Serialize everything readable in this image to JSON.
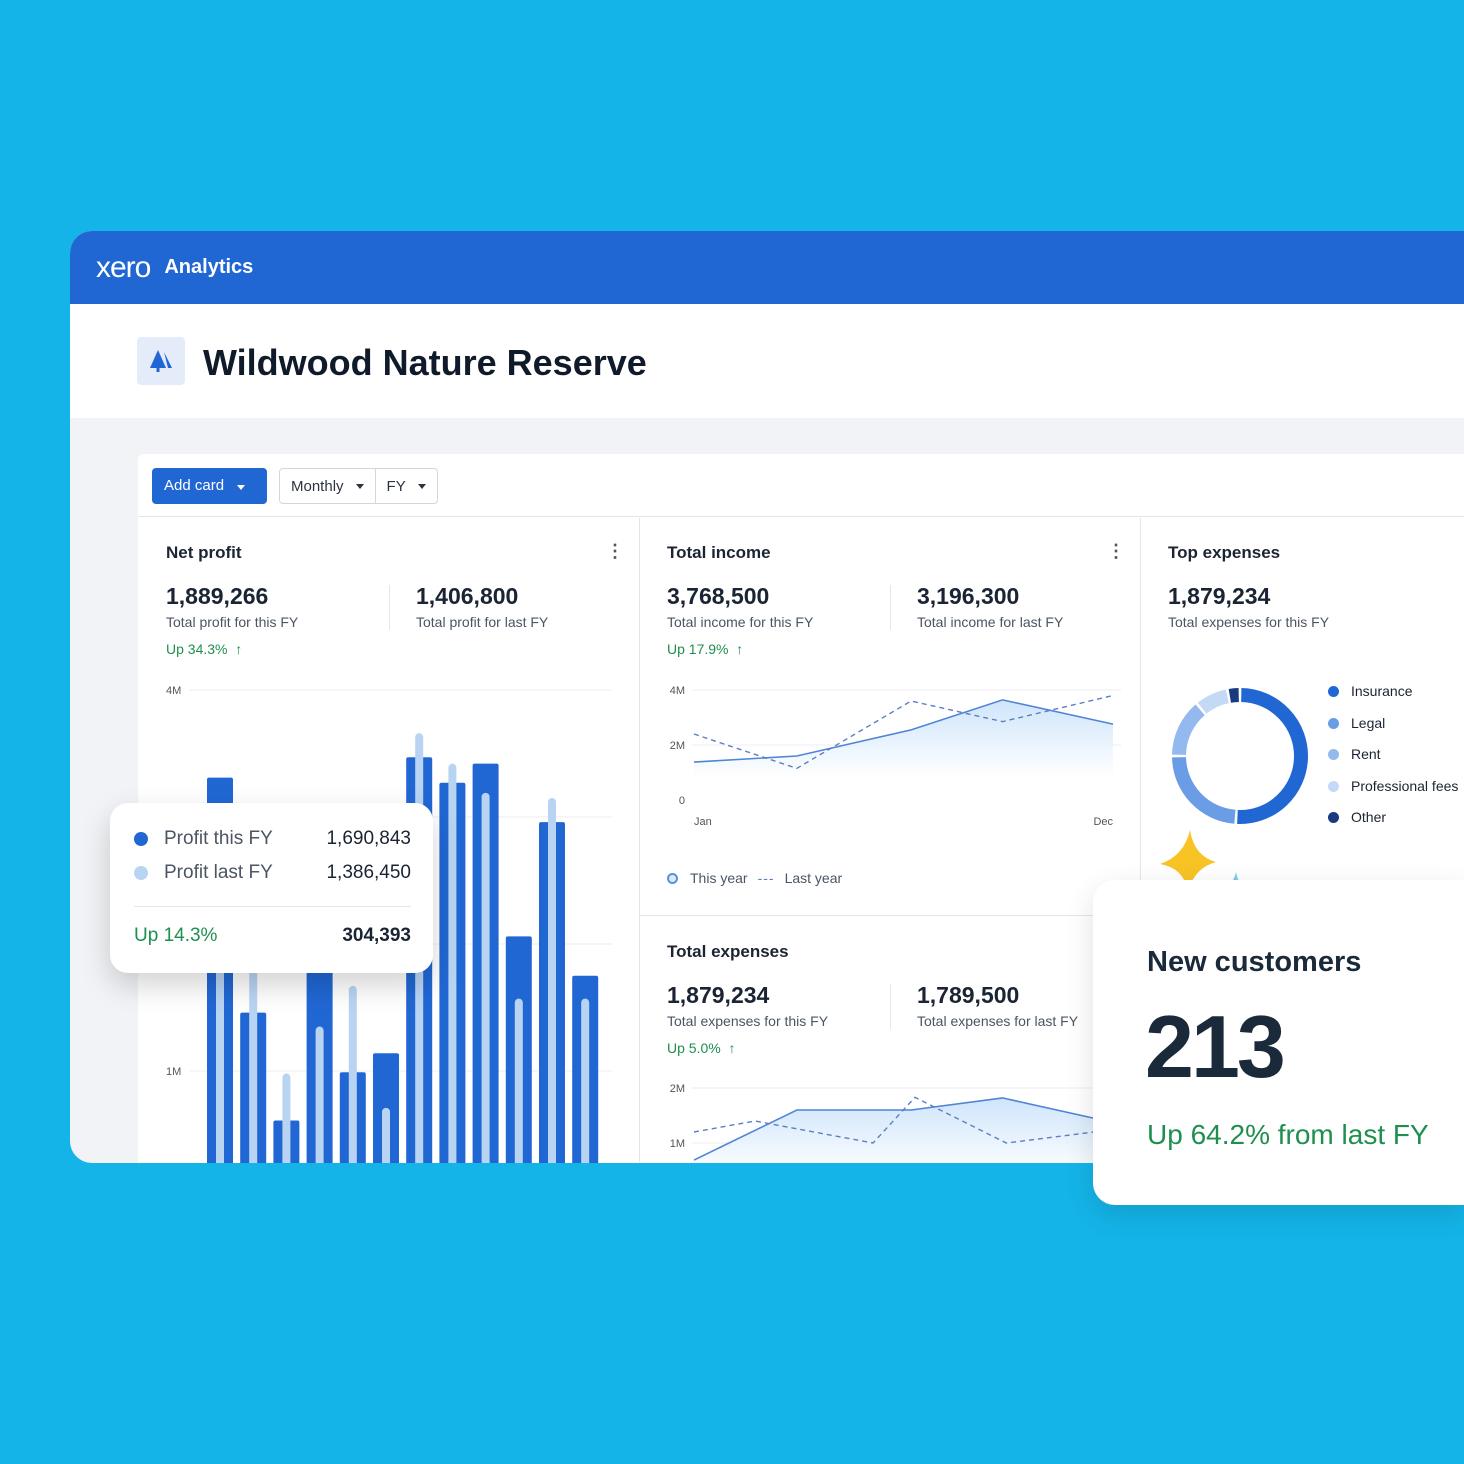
{
  "header": {
    "logo": "xero",
    "app": "Analytics"
  },
  "org": {
    "name": "Wildwood Nature Reserve",
    "icon": "tree-icon"
  },
  "toolbar": {
    "add_card": "Add card",
    "period": "Monthly",
    "range": "FY"
  },
  "net_profit": {
    "title": "Net profit",
    "this_value": "1,889,266",
    "this_label": "Total profit for this FY",
    "last_value": "1,406,800",
    "last_label": "Total profit for last FY",
    "change": "Up 34.3%"
  },
  "tooltip": {
    "row1_label": "Profit this FY",
    "row1_value": "1,690,843",
    "row2_label": "Profit last FY",
    "row2_value": "1,386,450",
    "change": "Up 14.3%",
    "diff": "304,393"
  },
  "total_income": {
    "title": "Total income",
    "this_value": "3,768,500",
    "this_label": "Total income for this FY",
    "last_value": "3,196,300",
    "last_label": "Total income for last FY",
    "change": "Up 17.9%",
    "legend_this": "This year",
    "legend_last": "Last year"
  },
  "total_expenses": {
    "title": "Total expenses",
    "this_value": "1,879,234",
    "this_label": "Total expenses for this FY",
    "last_value": "1,789,500",
    "last_label": "Total expenses for last FY",
    "change": "Up 5.0%"
  },
  "top_expenses": {
    "title": "Top expenses",
    "value": "1,879,234",
    "label": "Total expenses for this FY"
  },
  "new_customers": {
    "title": "New customers",
    "value": "213",
    "change": "Up 64.2% from last FY"
  },
  "colors": {
    "background": "#14b4e8",
    "brand": "#2167d4",
    "positive": "#1e8f4e",
    "this_fy": "#2167d4",
    "last_fy": "#b9d4f3",
    "sparkle_yellow": "#f7c325",
    "sparkle_blue": "#7fcbe8"
  },
  "chart_data": [
    {
      "type": "bar",
      "name": "net-profit",
      "yticks": [
        "4M",
        "1M"
      ],
      "ylim": [
        0,
        4000000
      ],
      "series": [
        {
          "name": "Profit this FY",
          "values": [
            3310000,
            1460000,
            610000,
            1900000,
            990000,
            1140000,
            3470000,
            3270000,
            3420000,
            2060000,
            2960000,
            1750000
          ]
        },
        {
          "name": "Profit last FY",
          "values": [
            2200000,
            1900000,
            980000,
            1350000,
            1670000,
            710000,
            3660000,
            3420000,
            3190000,
            1570000,
            3150000,
            1570000
          ]
        }
      ]
    },
    {
      "type": "line",
      "name": "total-income",
      "yticks": [
        "4M",
        "2M",
        "0"
      ],
      "xticks": [
        "Jan",
        "Dec"
      ],
      "ylim": [
        0,
        4000000
      ],
      "xlim": [
        1,
        12
      ],
      "series": [
        {
          "name": "This year",
          "x": [
            1,
            3.7,
            6.7,
            9.1,
            12
          ],
          "values": [
            1380000,
            1600000,
            2550000,
            3640000,
            2760000
          ]
        },
        {
          "name": "Last year",
          "x": [
            1,
            3.7,
            6.7,
            9.1,
            12
          ],
          "values": [
            2400000,
            1150000,
            3600000,
            2850000,
            3800000
          ]
        }
      ]
    },
    {
      "type": "line",
      "name": "total-expenses",
      "yticks": [
        "2M",
        "1M"
      ],
      "ylim": [
        0,
        2000000
      ],
      "xlim": [
        1,
        12
      ],
      "series": [
        {
          "name": "This year",
          "x": [
            1,
            3.7,
            6.7,
            9.1,
            11.5
          ],
          "values": [
            690000,
            1600000,
            1600000,
            1820000,
            1450000
          ]
        },
        {
          "name": "Last year",
          "x": [
            1,
            2.6,
            5.7,
            6.8,
            9.2,
            11.5
          ],
          "values": [
            1200000,
            1400000,
            1000000,
            1830000,
            1000000,
            1200000
          ]
        }
      ]
    },
    {
      "type": "pie",
      "name": "top-expenses",
      "categories": [
        "Insurance",
        "Legal",
        "Rent",
        "Professional fees",
        "Other"
      ],
      "values": [
        51,
        24,
        14,
        8,
        3
      ],
      "colors": [
        "#2167d4",
        "#6a9de6",
        "#93b9ee",
        "#c3d9f6",
        "#1a3a80"
      ]
    }
  ]
}
